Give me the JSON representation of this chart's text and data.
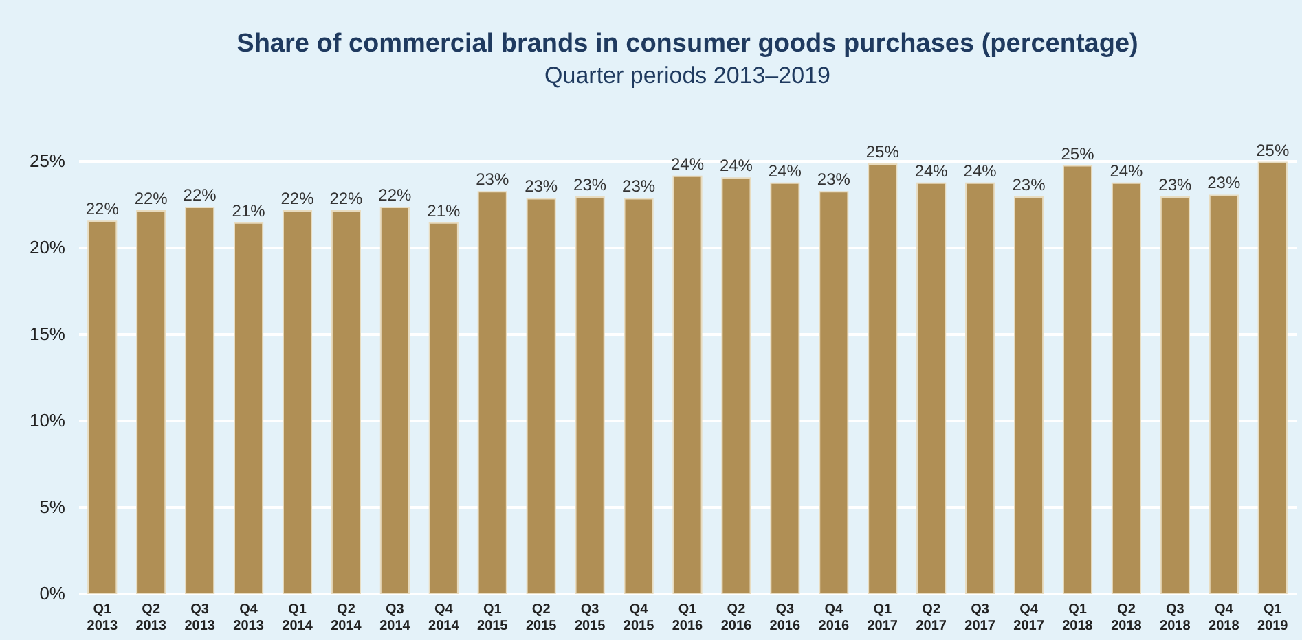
{
  "chart_data": {
    "type": "bar",
    "title": "Share of commercial brands in consumer goods purchases (percentage)",
    "subtitle": "Quarter periods 2013–2019",
    "categories": [
      "Q1 2013",
      "Q2 2013",
      "Q3 2013",
      "Q4 2013",
      "Q1 2014",
      "Q2 2014",
      "Q3 2014",
      "Q4 2014",
      "Q1 2015",
      "Q2 2015",
      "Q3 2015",
      "Q4 2015",
      "Q1 2016",
      "Q2 2016",
      "Q3 2016",
      "Q4 2016",
      "Q1 2017",
      "Q2 2017",
      "Q3 2017",
      "Q4 2017",
      "Q1 2018",
      "Q2 2018",
      "Q3 2018",
      "Q4 2018",
      "Q1 2019"
    ],
    "values": [
      21.5,
      22.1,
      22.3,
      21.4,
      22.1,
      22.1,
      22.3,
      21.4,
      23.2,
      22.8,
      22.9,
      22.8,
      24.1,
      24.0,
      23.7,
      23.2,
      24.8,
      23.7,
      23.7,
      22.9,
      24.7,
      23.7,
      22.9,
      23.0,
      24.9
    ],
    "value_labels": [
      "22%",
      "22%",
      "22%",
      "21%",
      "22%",
      "22%",
      "22%",
      "21%",
      "23%",
      "23%",
      "23%",
      "23%",
      "24%",
      "24%",
      "24%",
      "23%",
      "25%",
      "24%",
      "24%",
      "23%",
      "25%",
      "24%",
      "23%",
      "23%",
      "25%"
    ],
    "color": "#b08f55",
    "ylim": [
      0,
      25
    ],
    "yticks": [
      {
        "value": 0,
        "label": "0%"
      },
      {
        "value": 5,
        "label": "5%"
      },
      {
        "value": 10,
        "label": "10%"
      },
      {
        "value": 15,
        "label": "15%"
      },
      {
        "value": 20,
        "label": "20%"
      },
      {
        "value": 25,
        "label": "25%"
      }
    ],
    "grid": "y"
  }
}
